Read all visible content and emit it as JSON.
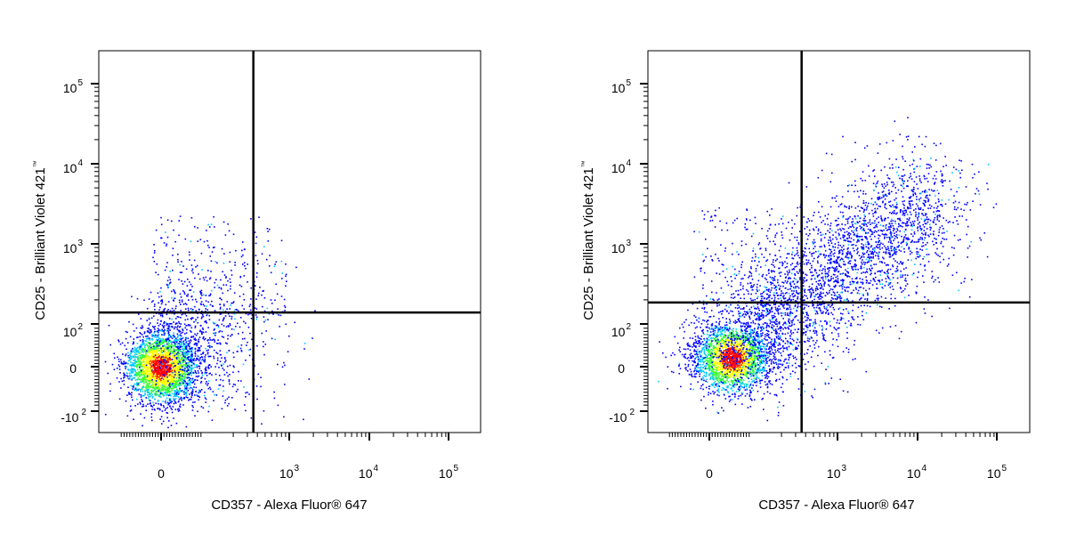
{
  "chart_data": [
    {
      "type": "scatter",
      "style": "flow cytometry density dot plot (pseudocolor)",
      "xlabel": "CD357 - Alexa Fluor® 647",
      "ylabel": "CD25 - Brilliant Violet 421",
      "ylabel_mark": "™",
      "x_scale": "biexponential",
      "y_scale": "biexponential",
      "x_ticks": [
        {
          "base": "0",
          "exp": ""
        },
        {
          "base": "10",
          "exp": "3"
        },
        {
          "base": "10",
          "exp": "4"
        },
        {
          "base": "10",
          "exp": "5"
        }
      ],
      "y_ticks": [
        {
          "base": "-10",
          "exp": "2"
        },
        {
          "base": "0",
          "exp": ""
        },
        {
          "base": "10",
          "exp": "2"
        },
        {
          "base": "10",
          "exp": "3"
        },
        {
          "base": "10",
          "exp": "4"
        },
        {
          "base": "10",
          "exp": "5"
        }
      ],
      "quadrant_gate": {
        "x": 400,
        "y": 150
      },
      "populations": [
        {
          "center": [
            0,
            0
          ],
          "spread": "dense",
          "share": 0.85
        },
        {
          "center": [
            300,
            250
          ],
          "spread": "sparse",
          "share": 0.15
        }
      ]
    },
    {
      "type": "scatter",
      "style": "flow cytometry density dot plot (pseudocolor)",
      "xlabel": "CD357 - Alexa Fluor® 647",
      "ylabel": "CD25 - Brilliant Violet 421",
      "ylabel_mark": "™",
      "x_scale": "biexponential",
      "y_scale": "biexponential",
      "x_ticks": [
        {
          "base": "0",
          "exp": ""
        },
        {
          "base": "10",
          "exp": "3"
        },
        {
          "base": "10",
          "exp": "4"
        },
        {
          "base": "10",
          "exp": "5"
        }
      ],
      "y_ticks": [
        {
          "base": "-10",
          "exp": "2"
        },
        {
          "base": "0",
          "exp": ""
        },
        {
          "base": "10",
          "exp": "2"
        },
        {
          "base": "10",
          "exp": "3"
        },
        {
          "base": "10",
          "exp": "4"
        },
        {
          "base": "10",
          "exp": "5"
        }
      ],
      "quadrant_gate": {
        "x": 400,
        "y": 200
      },
      "populations": [
        {
          "center": [
            50,
            0
          ],
          "spread": "dense",
          "share": 0.45
        },
        {
          "center": [
            1500,
            1000
          ],
          "spread": "broad",
          "share": 0.55
        }
      ]
    }
  ],
  "colors": {
    "axis": "#000000",
    "density_low": "#0000ff",
    "density_mid_low": "#00c8ff",
    "density_mid": "#32ff32",
    "density_mid_high": "#ffff00",
    "density_high": "#ff0000"
  }
}
